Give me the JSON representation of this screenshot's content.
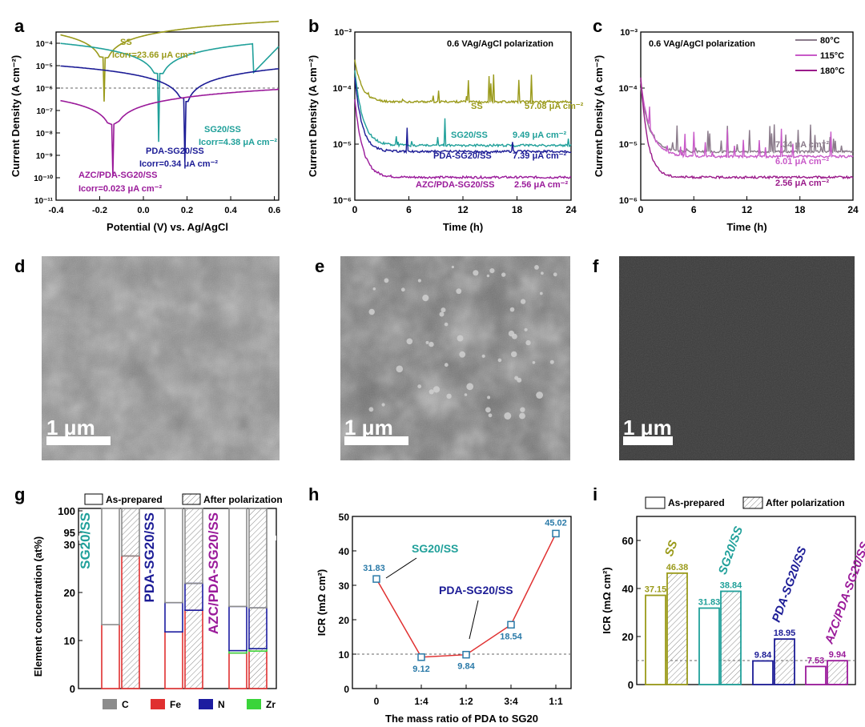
{
  "chart_data": [
    {
      "panel": "a",
      "type": "line",
      "xlabel": "Potential (V) vs. Ag/AgCl",
      "ylabel": "Current Density (A cm⁻²)",
      "xlim": [
        -0.4,
        0.62
      ],
      "ylim_log10": [
        -11,
        -3.5
      ],
      "xticks": [
        "-0.4",
        "-0.2",
        "0.0",
        "0.2",
        "0.4",
        "0.6"
      ],
      "yticks": [
        "10⁻¹¹",
        "10⁻¹⁰",
        "10⁻⁹",
        "10⁻⁸",
        "10⁻⁷",
        "10⁻⁶",
        "10⁻⁵",
        "10⁻⁴"
      ],
      "reference_line_log10": -6,
      "series": [
        {
          "name": "SS",
          "color": "#9a9a1a",
          "Ecorr": -0.18,
          "Icorr_uA": 23.66,
          "label": "SS",
          "icorr": "Icorr=23.66 μA cm⁻²"
        },
        {
          "name": "SG20/SS",
          "color": "#20a09a",
          "Ecorr": 0.07,
          "Icorr_uA": 4.38,
          "label": "SG20/SS",
          "icorr": "Icorr=4.38 μA cm⁻²"
        },
        {
          "name": "PDA-SG20/SS",
          "color": "#1c1c96",
          "Ecorr": 0.19,
          "Icorr_uA": 0.34,
          "label": "PDA-SG20/SS",
          "icorr": "Icorr=0.34 μA cm⁻²"
        },
        {
          "name": "AZC/PDA-SG20/SS",
          "color": "#9a1a9a",
          "Ecorr": -0.14,
          "Icorr_uA": 0.023,
          "label": "AZC/PDA-SG20/SS",
          "icorr": "Icorr=0.023 μA cm⁻²"
        }
      ]
    },
    {
      "panel": "b",
      "type": "line",
      "title": "0.6 VAg/AgCl polarization",
      "xlabel": "Time (h)",
      "ylabel": "Current Density (A cm⁻²)",
      "xlim": [
        0,
        24
      ],
      "ylim_log10": [
        -6,
        -3
      ],
      "xticks": [
        "0",
        "6",
        "12",
        "18",
        "24"
      ],
      "yticks": [
        "10⁻⁶",
        "10⁻⁵",
        "10⁻⁴",
        "10⁻³"
      ],
      "series": [
        {
          "name": "SS",
          "color": "#9a9a1a",
          "final_uA": 57.08,
          "label": "SS",
          "value_label": "57.08 μA cm⁻²"
        },
        {
          "name": "SG20/SS",
          "color": "#20a09a",
          "final_uA": 9.49,
          "label": "SG20/SS",
          "value_label": "9.49 μA cm⁻²"
        },
        {
          "name": "PDA-SG20/SS",
          "color": "#1c1c96",
          "final_uA": 7.39,
          "label": "PDA-SG20/SS",
          "value_label": "7.39 μA cm⁻²"
        },
        {
          "name": "AZC/PDA-SG20/SS",
          "color": "#9a1a9a",
          "final_uA": 2.56,
          "label": "AZC/PDA-SG20/SS",
          "value_label": "2.56 μA cm⁻²"
        }
      ]
    },
    {
      "panel": "c",
      "type": "line",
      "title": "0.6 VAg/AgCl polarization",
      "xlabel": "Time (h)",
      "ylabel": "Current Density (A cm⁻²)",
      "xlim": [
        0,
        24
      ],
      "ylim_log10": [
        -6,
        -3
      ],
      "xticks": [
        "0",
        "6",
        "12",
        "18",
        "24"
      ],
      "yticks": [
        "10⁻⁶",
        "10⁻⁵",
        "10⁻⁴",
        "10⁻³"
      ],
      "legend": "top-right",
      "series": [
        {
          "name": "80°C",
          "color": "#8a7a8a",
          "final_uA": 7.34,
          "value_label": "7.34 μA cm⁻²"
        },
        {
          "name": "115°C",
          "color": "#c85ac8",
          "final_uA": 6.01,
          "value_label": "6.01 μA cm⁻²"
        },
        {
          "name": "180°C",
          "color": "#9a1a8a",
          "final_uA": 2.56,
          "value_label": "2.56 μA cm⁻²"
        }
      ]
    },
    {
      "panel": "g",
      "type": "bar",
      "ylabel": "Element concentration (at%)",
      "yticks": [
        "0",
        "10",
        "20",
        "30",
        "95",
        "100"
      ],
      "legend_top": [
        "As-prepared",
        "After polarization"
      ],
      "legend_bottom": [
        "C",
        "Fe",
        "N",
        "Zr"
      ],
      "element_colors": {
        "C": "#8c8c8c",
        "Fe": "#e03030",
        "N": "#1c1ca0",
        "Zr": "#3ad43a"
      },
      "group_labels": [
        "SG20/SS",
        "PDA-SG20/SS",
        "AZC/PDA-SG20/SS"
      ],
      "group_label_colors": [
        "#20a09a",
        "#1c1c96",
        "#9a1a9a"
      ],
      "categories": [
        "SG20/SS",
        "PDA-SG20/SS",
        "AZC/PDA-SG20/SS"
      ],
      "series": [
        {
          "name": "As-prepared",
          "stacks": [
            {
              "Fe": 13.3,
              "C": 86.7
            },
            {
              "Fe": 11.8,
              "N": 6.1,
              "C": 82.1
            },
            {
              "Fe": 7.4,
              "Zr": 0.5,
              "N": 9.2,
              "C": 82.9
            }
          ]
        },
        {
          "name": "After polarization",
          "stacks": [
            {
              "Fe": 27.6,
              "C": 72.4
            },
            {
              "Fe": 16.3,
              "N": 5.6,
              "C": 78.1
            },
            {
              "Fe": 7.8,
              "Zr": 0.5,
              "N": 8.5,
              "C": 83.2
            }
          ]
        }
      ]
    },
    {
      "panel": "h",
      "type": "line",
      "xlabel": "The mass ratio of PDA to SG20",
      "ylabel": "ICR (mΩ cm²)",
      "categories": [
        "0",
        "1:4",
        "1:2",
        "3:4",
        "1:1"
      ],
      "values": [
        31.83,
        9.12,
        9.84,
        18.54,
        45.02
      ],
      "ylim": [
        0,
        50
      ],
      "yticks": [
        "0",
        "10",
        "20",
        "30",
        "40",
        "50"
      ],
      "reference_line": 10,
      "annotations": [
        "SG20/SS",
        "PDA-SG20/SS"
      ]
    },
    {
      "panel": "i",
      "type": "bar",
      "ylabel": "ICR (mΩ cm²)",
      "ylim": [
        0,
        70
      ],
      "yticks": [
        "0",
        "20",
        "40",
        "60"
      ],
      "reference_line": 10,
      "legend": [
        "As-prepared",
        "After polarization"
      ],
      "categories": [
        "SS",
        "SG20/SS",
        "PDA-SG20/SS",
        "AZC/PDA-SG20/SS"
      ],
      "category_colors": [
        "#9a9a1a",
        "#20a09a",
        "#1c1c96",
        "#9a1a9a"
      ],
      "series": [
        {
          "name": "As-prepared",
          "values": [
            37.15,
            31.83,
            9.84,
            7.53
          ]
        },
        {
          "name": "After polarization",
          "values": [
            46.38,
            38.84,
            18.95,
            9.94
          ]
        }
      ]
    }
  ],
  "panel_letters": [
    "a",
    "b",
    "c",
    "d",
    "e",
    "f",
    "g",
    "h",
    "i"
  ],
  "sem_images": [
    {
      "panel": "d",
      "scale_label": "1 μm"
    },
    {
      "panel": "e",
      "scale_label": "1 μm"
    },
    {
      "panel": "f",
      "scale_label": "1 μm"
    }
  ]
}
